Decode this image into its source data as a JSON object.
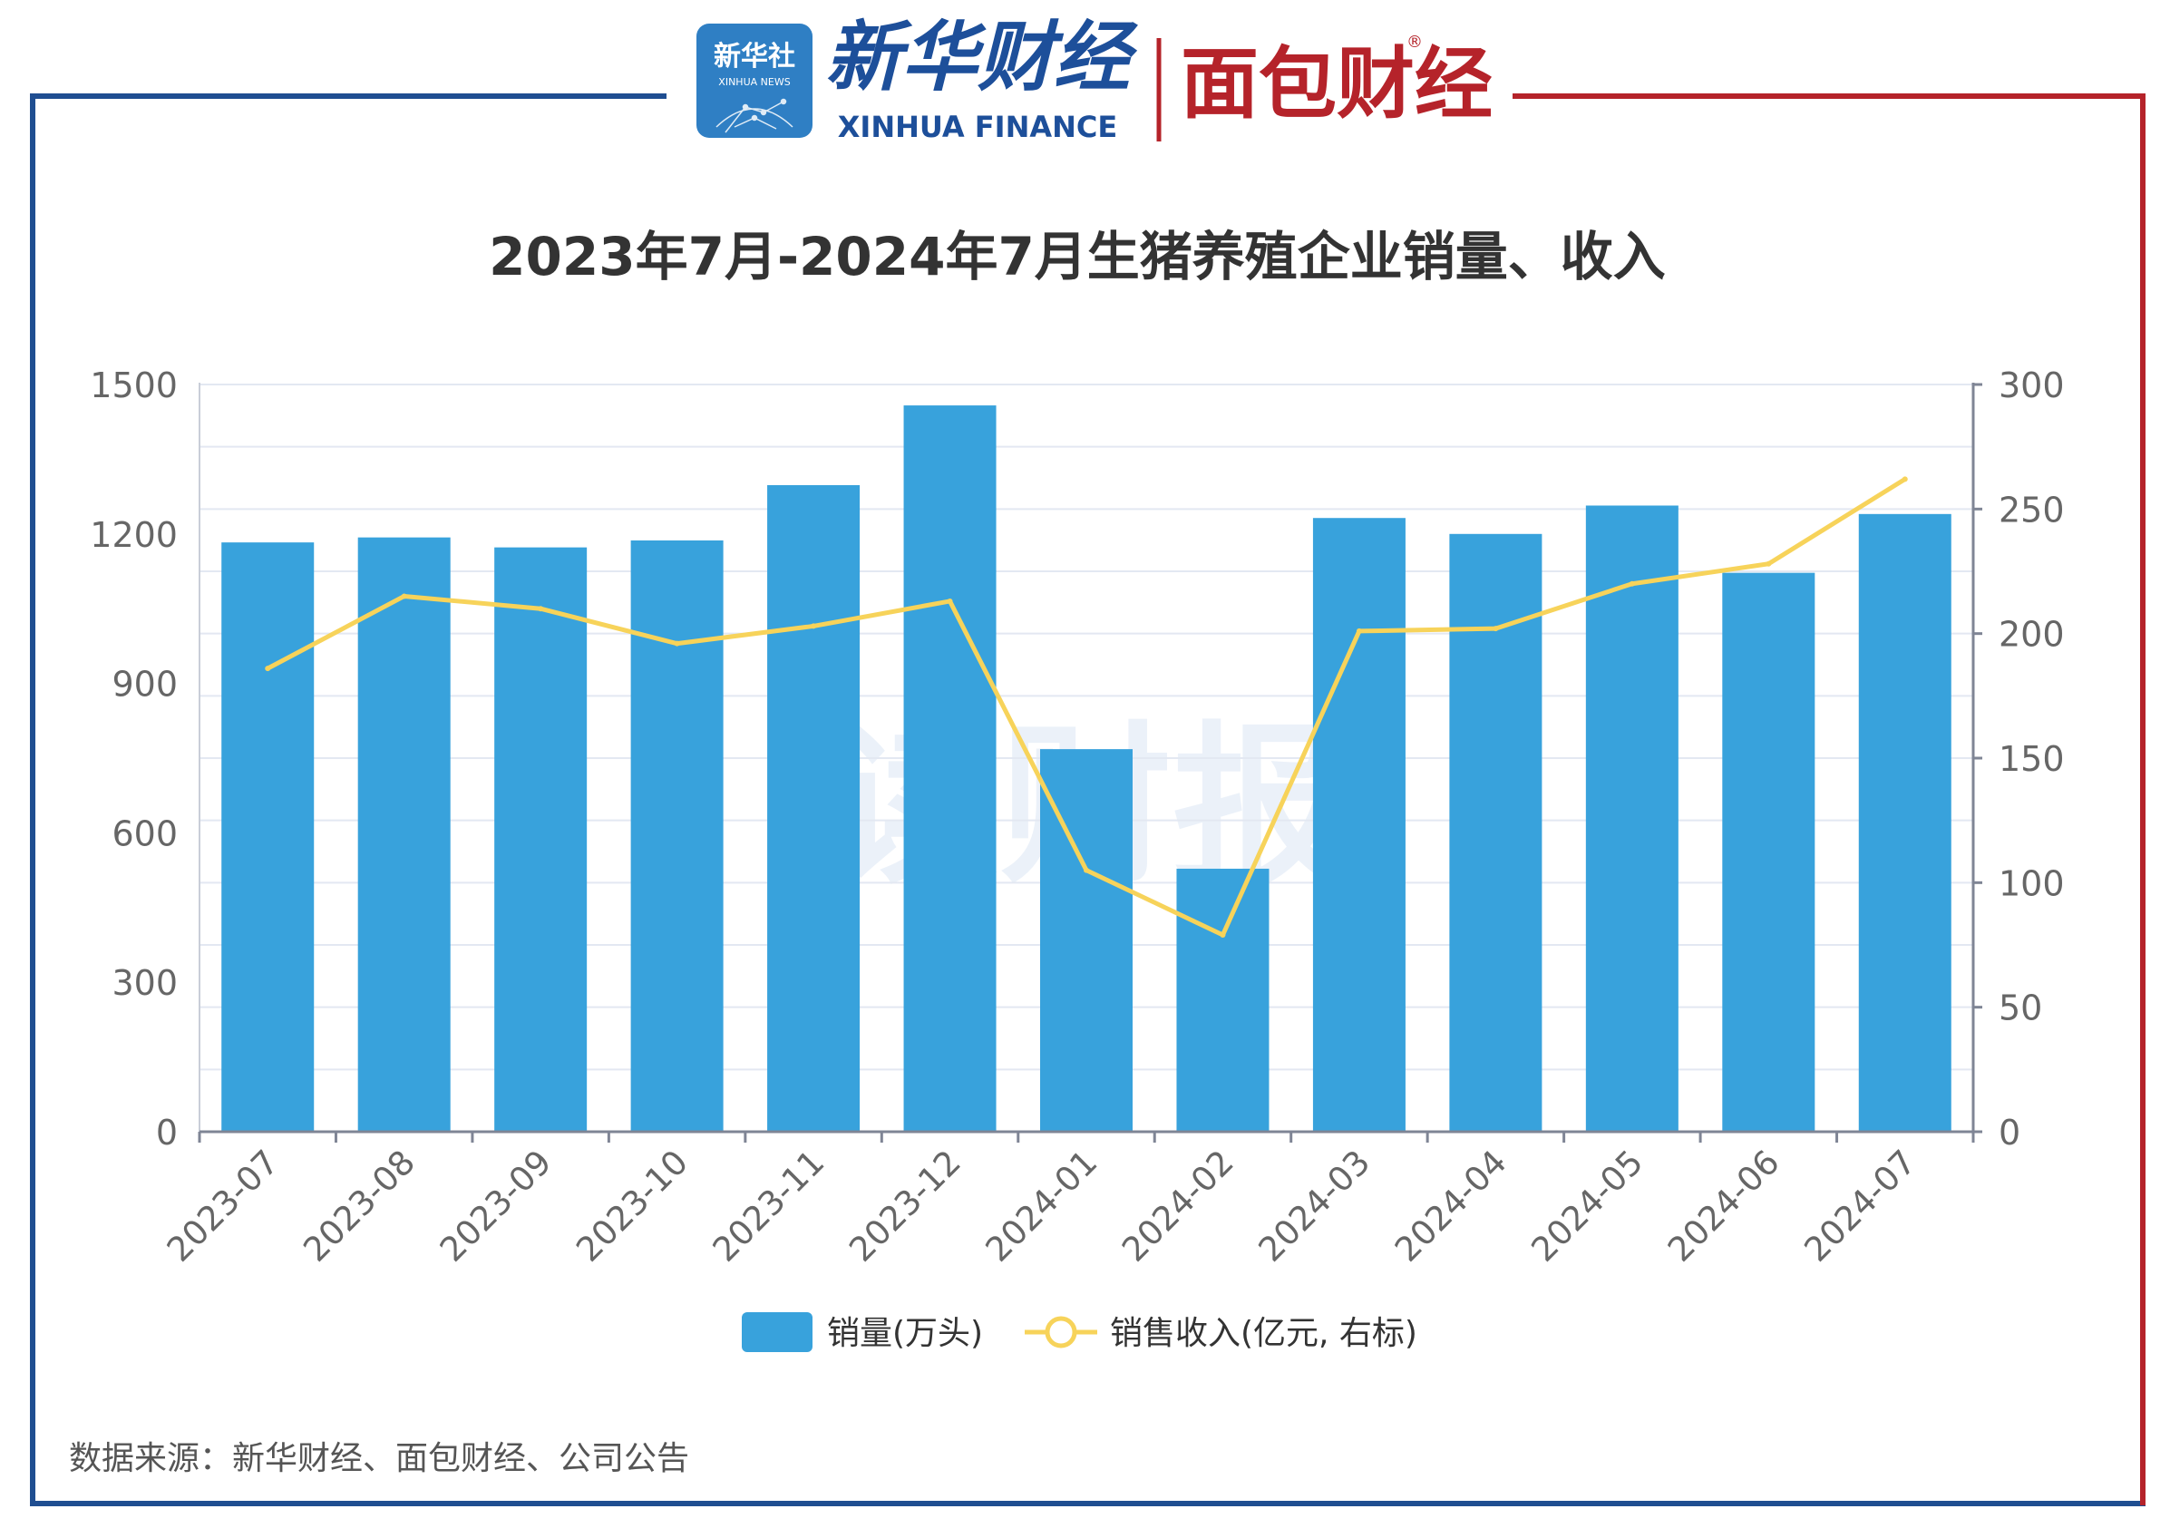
{
  "header": {
    "xinhua_badge_top": "新华社",
    "xinhua_badge_bottom": "XINHUA NEWS",
    "xinhua_finance_cn": "新华财经",
    "xinhua_finance_en": "XINHUA FINANCE",
    "mianbao_logo": "面包财经",
    "registered_mark": "®"
  },
  "watermark": "读财报",
  "source_note": "数据来源：新华财经、面包财经、公司公告",
  "colors": {
    "frame_left": "#1f4e91",
    "frame_right": "#b5232a",
    "bar": "#38a2dc",
    "line": "#f7d35a",
    "axis_text": "#666666",
    "title_text": "#333333",
    "grid": "#e3e8f2",
    "badge_bg": "#2f7fc4"
  },
  "chart_data": {
    "type": "bar",
    "title": "2023年7月-2024年7月生猪养殖企业销量、收入",
    "categories": [
      "2023-07",
      "2023-08",
      "2023-09",
      "2023-10",
      "2023-11",
      "2023-12",
      "2024-01",
      "2024-02",
      "2024-03",
      "2024-04",
      "2024-05",
      "2024-06",
      "2024-07"
    ],
    "series": [
      {
        "name": "销量(万头)",
        "type": "bar",
        "axis": "left",
        "values": [
          1183,
          1193,
          1173,
          1187,
          1298,
          1458,
          768,
          528,
          1232,
          1200,
          1257,
          1122,
          1240
        ]
      },
      {
        "name": "销售收入(亿元, 右标)",
        "type": "line",
        "axis": "right",
        "values": [
          186,
          215,
          210,
          196,
          203,
          213,
          105,
          79,
          201,
          202,
          220,
          228,
          262
        ]
      }
    ],
    "left_axis": {
      "ylim": [
        0,
        1500
      ],
      "ticks": [
        "0",
        "300",
        "600",
        "900",
        "1200",
        "1500"
      ]
    },
    "right_axis": {
      "ylim": [
        0,
        300
      ],
      "ticks": [
        "0",
        "50",
        "100",
        "150",
        "200",
        "250",
        "300"
      ]
    },
    "grid": true,
    "legend": "bottom-center"
  }
}
